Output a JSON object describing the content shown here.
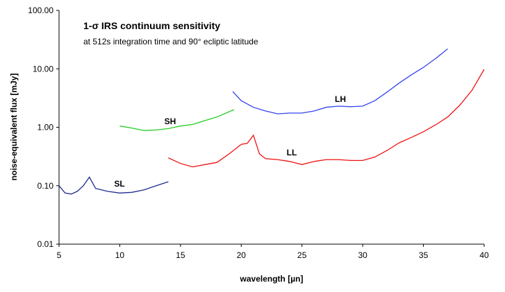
{
  "chart_data": {
    "type": "line",
    "title": "1-σ IRS continuum sensitivity",
    "subtitle": "at 512s integration time and 90° ecliptic latitude",
    "x_label": "wavelength [µn]",
    "y_label": "noise-equivalent flux [mJy]",
    "xlim": [
      5,
      40
    ],
    "xticks": [
      5,
      10,
      15,
      20,
      25,
      30,
      35,
      40
    ],
    "ylim": [
      0.01,
      100
    ],
    "yticks": [
      {
        "value": 0.01,
        "label": "0.01"
      },
      {
        "value": 0.1,
        "label": "0.10"
      },
      {
        "value": 1,
        "label": "1.00"
      },
      {
        "value": 10,
        "label": "10.00"
      },
      {
        "value": 100,
        "label": "100.00"
      }
    ],
    "y_scale": "log",
    "grid": false,
    "series": [
      {
        "name": "SL",
        "color": "#1f2a8c",
        "x": [
          5,
          5.5,
          6,
          6.5,
          7,
          7.5,
          8,
          8.5,
          9,
          10,
          11,
          12,
          13,
          14
        ],
        "values": [
          0.1,
          0.075,
          0.072,
          0.08,
          0.1,
          0.14,
          0.09,
          0.085,
          0.08,
          0.075,
          0.077,
          0.085,
          0.1,
          0.117
        ]
      },
      {
        "name": "SH",
        "color": "#22cc22",
        "x": [
          10,
          11,
          12,
          13,
          14,
          15,
          16,
          17,
          18,
          19.4
        ],
        "values": [
          1.05,
          0.97,
          0.88,
          0.9,
          0.95,
          1.05,
          1.12,
          1.3,
          1.5,
          2.0
        ]
      },
      {
        "name": "LH",
        "color": "#3344ee",
        "x": [
          19.3,
          20,
          21,
          22,
          23,
          24,
          25,
          26,
          27,
          28,
          29,
          30,
          31,
          32,
          33,
          34,
          35,
          36,
          37
        ],
        "values": [
          4.1,
          2.85,
          2.2,
          1.9,
          1.7,
          1.75,
          1.75,
          1.9,
          2.2,
          2.3,
          2.25,
          2.3,
          2.85,
          4.0,
          5.7,
          7.9,
          10.6,
          15,
          22
        ]
      },
      {
        "name": "LL",
        "color": "#ee1111",
        "x": [
          14,
          15,
          16,
          17,
          18,
          19,
          20,
          20.5,
          21,
          21.5,
          22,
          23,
          24,
          25,
          26,
          27,
          28,
          29,
          30,
          31,
          32,
          33,
          34,
          35,
          36,
          37,
          38,
          39,
          40
        ],
        "values": [
          0.3,
          0.24,
          0.21,
          0.23,
          0.25,
          0.35,
          0.51,
          0.53,
          0.73,
          0.35,
          0.29,
          0.28,
          0.26,
          0.23,
          0.26,
          0.28,
          0.28,
          0.27,
          0.27,
          0.31,
          0.4,
          0.54,
          0.67,
          0.84,
          1.1,
          1.5,
          2.4,
          4.3,
          9.8
        ]
      }
    ]
  }
}
